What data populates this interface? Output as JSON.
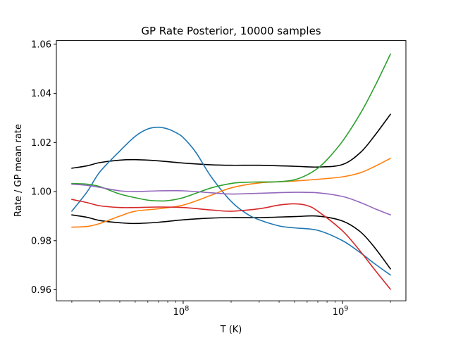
{
  "chart_data": {
    "type": "line",
    "title": "GP Rate Posterior, 10000 samples",
    "xlabel": "T (K)",
    "ylabel": "Rate / GP mean rate",
    "xscale": "log",
    "xlim": [
      16000000,
      2500000000
    ],
    "ylim": [
      0.9555,
      1.0615
    ],
    "x_ticks": [
      {
        "value": 100000000,
        "base": "10",
        "exp": "8"
      },
      {
        "value": 1000000000,
        "base": "10",
        "exp": "9"
      }
    ],
    "y_ticks": [
      {
        "value": 0.96,
        "label": "0.96"
      },
      {
        "value": 0.98,
        "label": "0.98"
      },
      {
        "value": 1.0,
        "label": "1.00"
      },
      {
        "value": 1.02,
        "label": "1.02"
      },
      {
        "value": 1.04,
        "label": "1.04"
      },
      {
        "value": 1.06,
        "label": "1.06"
      }
    ],
    "grid": false,
    "legend": false,
    "series": [
      {
        "color": "#000000",
        "x": [
          20000000,
          25000000,
          30000000,
          40000000,
          50000000,
          70000000,
          100000000,
          150000000,
          200000000,
          300000000,
          500000000,
          700000000,
          1000000000,
          1300000000,
          1600000000,
          2000000000
        ],
        "y": [
          1.0095,
          1.0105,
          1.0118,
          1.0128,
          1.013,
          1.0125,
          1.0116,
          1.0109,
          1.0107,
          1.0107,
          1.0103,
          1.01,
          1.011,
          1.016,
          1.023,
          1.0315
        ]
      },
      {
        "color": "#000000",
        "x": [
          20000000,
          25000000,
          30000000,
          40000000,
          50000000,
          70000000,
          100000000,
          150000000,
          200000000,
          300000000,
          500000000,
          700000000,
          1000000000,
          1300000000,
          1600000000,
          2000000000
        ],
        "y": [
          0.9905,
          0.9895,
          0.9882,
          0.9873,
          0.987,
          0.9875,
          0.9885,
          0.9892,
          0.9894,
          0.9894,
          0.9898,
          0.99,
          0.988,
          0.9835,
          0.977,
          0.9685
        ]
      },
      {
        "color": "#1f77b4",
        "x": [
          20000000,
          25000000,
          30000000,
          40000000,
          50000000,
          60000000,
          70000000,
          80000000,
          90000000,
          100000000,
          120000000,
          150000000,
          200000000,
          250000000,
          300000000,
          400000000,
          500000000,
          700000000,
          1000000000,
          1300000000,
          1600000000,
          2000000000
        ],
        "y": [
          0.992,
          1.0,
          1.008,
          1.0165,
          1.0225,
          1.0255,
          1.0262,
          1.0255,
          1.024,
          1.022,
          1.016,
          1.006,
          0.996,
          0.991,
          0.9885,
          0.986,
          0.9852,
          0.9842,
          0.98,
          0.975,
          0.9705,
          0.966
        ]
      },
      {
        "color": "#ff7f0e",
        "x": [
          20000000,
          25000000,
          30000000,
          40000000,
          50000000,
          70000000,
          100000000,
          150000000,
          200000000,
          300000000,
          500000000,
          700000000,
          1000000000,
          1300000000,
          1600000000,
          2000000000
        ],
        "y": [
          0.9855,
          0.9858,
          0.987,
          0.99,
          0.992,
          0.993,
          0.9945,
          0.9985,
          1.0015,
          1.0035,
          1.0043,
          1.005,
          1.006,
          1.0077,
          1.0103,
          1.0135
        ]
      },
      {
        "color": "#2ca02c",
        "x": [
          20000000,
          25000000,
          30000000,
          40000000,
          50000000,
          60000000,
          70000000,
          80000000,
          100000000,
          150000000,
          200000000,
          250000000,
          300000000,
          400000000,
          500000000,
          600000000,
          700000000,
          800000000,
          1000000000,
          1300000000,
          1600000000,
          2000000000
        ],
        "y": [
          1.0033,
          1.003,
          1.002,
          0.999,
          0.9975,
          0.9965,
          0.9962,
          0.9963,
          0.9975,
          1.0015,
          1.0033,
          1.0038,
          1.0039,
          1.004,
          1.0048,
          1.0068,
          1.0095,
          1.013,
          1.0205,
          1.032,
          1.043,
          1.056
        ]
      },
      {
        "color": "#d62728",
        "x": [
          20000000,
          25000000,
          30000000,
          40000000,
          50000000,
          70000000,
          100000000,
          150000000,
          200000000,
          300000000,
          400000000,
          500000000,
          600000000,
          700000000,
          1000000000,
          1300000000,
          1600000000,
          2000000000
        ],
        "y": [
          0.9968,
          0.9955,
          0.9942,
          0.9935,
          0.9935,
          0.9937,
          0.9935,
          0.9925,
          0.992,
          0.993,
          0.9945,
          0.995,
          0.9943,
          0.992,
          0.984,
          0.9755,
          0.968,
          0.9602
        ]
      },
      {
        "color": "#9467bd",
        "x": [
          20000000,
          25000000,
          30000000,
          40000000,
          50000000,
          70000000,
          100000000,
          150000000,
          200000000,
          300000000,
          500000000,
          700000000,
          1000000000,
          1300000000,
          1600000000,
          2000000000
        ],
        "y": [
          1.003,
          1.0025,
          1.0017,
          1.0003,
          1.0,
          1.0003,
          1.0003,
          0.9995,
          0.999,
          0.9993,
          0.9997,
          0.9995,
          0.998,
          0.9955,
          0.993,
          0.9905
        ]
      }
    ]
  }
}
